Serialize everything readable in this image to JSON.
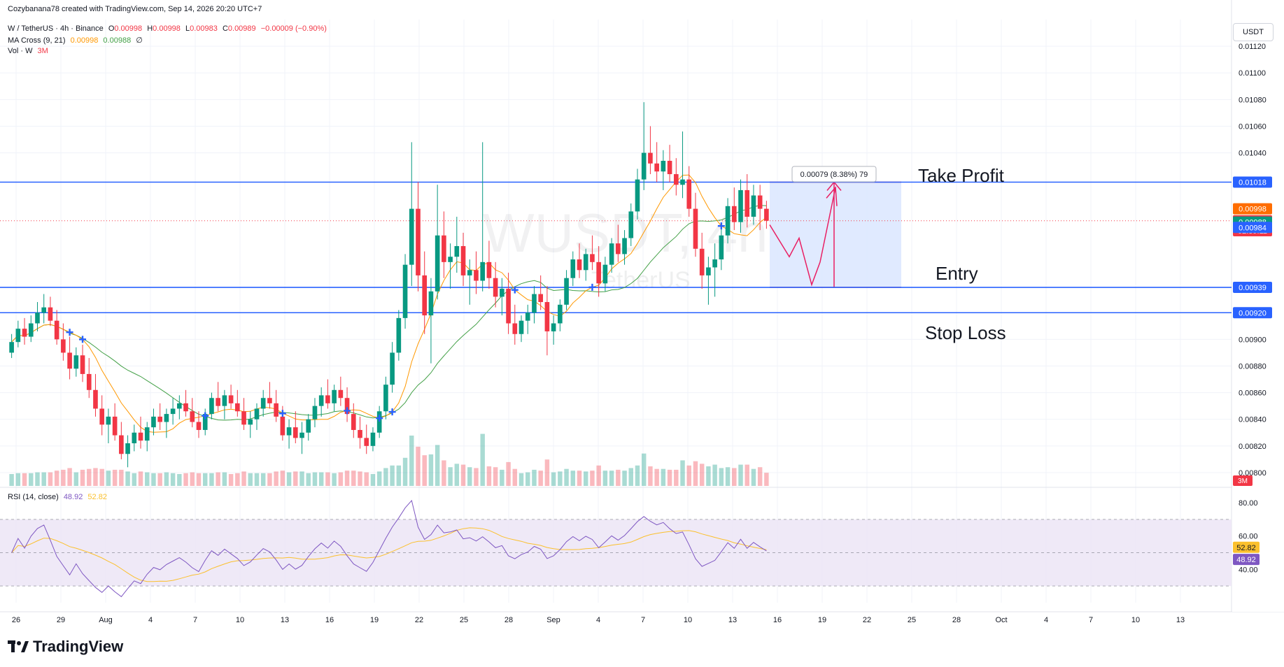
{
  "header": {
    "credit": "Cozybanana78 created with TradingView.com, Sep 14, 2026 20:20 UTC+7",
    "symbol": "W / TetherUS · 4h · Binance",
    "o_label": "O",
    "o_value": "0.00998",
    "h_label": "H",
    "h_value": "0.00998",
    "l_label": "L",
    "l_value": "0.00983",
    "c_label": "C",
    "c_value": "0.00989",
    "change": "−0.00009 (−0.90%)",
    "ma_label": "MA Cross (9, 21)",
    "ma_fast": "0.00998",
    "ma_slow": "0.00988",
    "ma_extra": "∅",
    "vol_label": "Vol · W",
    "vol_value": "3M"
  },
  "currency_button": "USDT",
  "watermark": {
    "symbol": "WUSDT, 4h",
    "name": "TetherUS"
  },
  "annotations": {
    "take_profit": "Take Profit",
    "entry": "Entry",
    "stop_loss": "Stop Loss",
    "measure": "0.00079 (8.38%) 79"
  },
  "price_axis": {
    "ticks": [
      "0.01120",
      "0.01100",
      "0.01080",
      "0.01060",
      "0.01040",
      "0.00900",
      "0.00880",
      "0.00860",
      "0.00840",
      "0.00820",
      "0.00800"
    ],
    "tick_values": [
      0.0112,
      0.011,
      0.0108,
      0.0106,
      0.0104,
      0.009,
      0.0088,
      0.0086,
      0.0084,
      0.0082,
      0.008
    ],
    "badges": [
      {
        "text": "0.01018",
        "value": 0.01018,
        "color": "#2962ff"
      },
      {
        "text": "0.00998",
        "value": 0.00998,
        "color": "#ff6d00"
      },
      {
        "text": "0.00989",
        "value": 0.00989,
        "color": "#f23645"
      },
      {
        "text": "02:39:11",
        "value": 0.009815,
        "color": "#f23645"
      },
      {
        "text": "0.00988",
        "value": 0.00988,
        "color": "#089981"
      },
      {
        "text": "0.00984",
        "value": 0.00984,
        "color": "#2962ff"
      },
      {
        "text": "0.00939",
        "value": 0.00939,
        "color": "#2962ff"
      },
      {
        "text": "0.00920",
        "value": 0.0092,
        "color": "#2962ff"
      }
    ],
    "volume_badge": "3M"
  },
  "rsi": {
    "label": "RSI (14, close)",
    "value": "48.92",
    "ma_value": "52.82",
    "ticks": [
      "80.00",
      "60.00",
      "40.00"
    ],
    "tick_values": [
      80,
      60,
      40
    ],
    "upper": 70,
    "lower": 30,
    "colors": {
      "rsi": "#7e57c2",
      "ma": "#fbc02d",
      "band": "#ede7f6"
    }
  },
  "time_axis": {
    "labels": [
      "26",
      "29",
      "Aug",
      "4",
      "7",
      "10",
      "13",
      "16",
      "19",
      "22",
      "25",
      "28",
      "Sep",
      "4",
      "7",
      "10",
      "13",
      "16",
      "19",
      "22",
      "25",
      "28",
      "Oct",
      "4",
      "7",
      "10",
      "13"
    ]
  },
  "colors": {
    "up": "#089981",
    "down": "#f23645",
    "ma_fast": "#ff9800",
    "ma_slow": "#43a047",
    "level": "#2962ff",
    "cross": "#2962ff",
    "zone": "#dbe6ff",
    "arrow": "#e91e63"
  },
  "chart_data": {
    "type": "candlestick",
    "symbol": "W / TetherUS",
    "interval": "4h",
    "exchange": "Binance",
    "levels": [
      {
        "name": "Take Profit",
        "price": 0.01018
      },
      {
        "name": "Entry",
        "price": 0.00939
      },
      {
        "name": "Stop Loss",
        "price": 0.0092
      }
    ],
    "price_range": [
      0.0079,
      0.0114
    ],
    "last_price": 0.00989,
    "candles": [
      [
        0.0089,
        0.00904,
        0.00886,
        0.00898
      ],
      [
        0.00898,
        0.00914,
        0.00894,
        0.00908
      ],
      [
        0.00908,
        0.00916,
        0.00896,
        0.00902
      ],
      [
        0.00902,
        0.00918,
        0.00898,
        0.00912
      ],
      [
        0.00912,
        0.00928,
        0.00906,
        0.0092
      ],
      [
        0.0092,
        0.00934,
        0.00912,
        0.00924
      ],
      [
        0.00924,
        0.00932,
        0.0091,
        0.00914
      ],
      [
        0.00914,
        0.00922,
        0.00896,
        0.009
      ],
      [
        0.009,
        0.00912,
        0.00884,
        0.0089
      ],
      [
        0.0089,
        0.00902,
        0.0087,
        0.00878
      ],
      [
        0.00878,
        0.00894,
        0.00872,
        0.00888
      ],
      [
        0.00888,
        0.00896,
        0.00868,
        0.00874
      ],
      [
        0.00874,
        0.00886,
        0.00856,
        0.00862
      ],
      [
        0.00862,
        0.00874,
        0.00842,
        0.00848
      ],
      [
        0.00848,
        0.00858,
        0.00828,
        0.00836
      ],
      [
        0.00836,
        0.00848,
        0.00822,
        0.00842
      ],
      [
        0.00842,
        0.00852,
        0.00824,
        0.00828
      ],
      [
        0.00828,
        0.00838,
        0.0081,
        0.00814
      ],
      [
        0.00814,
        0.00828,
        0.00804,
        0.00822
      ],
      [
        0.00822,
        0.00836,
        0.00816,
        0.0083
      ],
      [
        0.0083,
        0.00842,
        0.00818,
        0.00824
      ],
      [
        0.00824,
        0.00838,
        0.00816,
        0.00834
      ],
      [
        0.00834,
        0.00848,
        0.00828,
        0.00842
      ],
      [
        0.00842,
        0.00852,
        0.00832,
        0.00838
      ],
      [
        0.00838,
        0.00848,
        0.00826,
        0.00844
      ],
      [
        0.00844,
        0.00856,
        0.00836,
        0.00848
      ],
      [
        0.00848,
        0.00858,
        0.0084,
        0.00852
      ],
      [
        0.00852,
        0.00862,
        0.00842,
        0.00846
      ],
      [
        0.00846,
        0.00856,
        0.00834,
        0.00838
      ],
      [
        0.00838,
        0.00846,
        0.00826,
        0.00832
      ],
      [
        0.00832,
        0.00848,
        0.00828,
        0.00844
      ],
      [
        0.00844,
        0.0086,
        0.0084,
        0.00856
      ],
      [
        0.00856,
        0.00868,
        0.00846,
        0.0085
      ],
      [
        0.0085,
        0.00862,
        0.0084,
        0.00858
      ],
      [
        0.00858,
        0.00866,
        0.00848,
        0.00852
      ],
      [
        0.00852,
        0.00862,
        0.00842,
        0.00846
      ],
      [
        0.00846,
        0.00856,
        0.00832,
        0.00836
      ],
      [
        0.00836,
        0.00846,
        0.00826,
        0.0084
      ],
      [
        0.0084,
        0.00852,
        0.00832,
        0.00848
      ],
      [
        0.00848,
        0.00862,
        0.00842,
        0.00856
      ],
      [
        0.00856,
        0.00868,
        0.00848,
        0.00852
      ],
      [
        0.00852,
        0.00862,
        0.00838,
        0.00842
      ],
      [
        0.00842,
        0.0085,
        0.00824,
        0.00828
      ],
      [
        0.00828,
        0.0084,
        0.00818,
        0.00834
      ],
      [
        0.00834,
        0.00846,
        0.00822,
        0.00826
      ],
      [
        0.00826,
        0.00838,
        0.00814,
        0.0083
      ],
      [
        0.0083,
        0.00844,
        0.00824,
        0.0084
      ],
      [
        0.0084,
        0.00856,
        0.00834,
        0.0085
      ],
      [
        0.0085,
        0.00864,
        0.00842,
        0.00858
      ],
      [
        0.00858,
        0.0087,
        0.00848,
        0.00852
      ],
      [
        0.00852,
        0.00866,
        0.00846,
        0.00862
      ],
      [
        0.00862,
        0.00872,
        0.0085,
        0.00856
      ],
      [
        0.00856,
        0.00864,
        0.00838,
        0.00844
      ],
      [
        0.00844,
        0.00852,
        0.00826,
        0.00832
      ],
      [
        0.00832,
        0.00842,
        0.00818,
        0.00826
      ],
      [
        0.00826,
        0.00836,
        0.00814,
        0.0082
      ],
      [
        0.0082,
        0.00834,
        0.00816,
        0.0083
      ],
      [
        0.0083,
        0.0085,
        0.00826,
        0.00846
      ],
      [
        0.00846,
        0.00872,
        0.0084,
        0.00866
      ],
      [
        0.00866,
        0.00898,
        0.0086,
        0.0089
      ],
      [
        0.0089,
        0.00922,
        0.00884,
        0.00916
      ],
      [
        0.00916,
        0.00964,
        0.00908,
        0.00956
      ],
      [
        0.00956,
        0.01048,
        0.0094,
        0.00998
      ],
      [
        0.00998,
        0.01018,
        0.00936,
        0.00948
      ],
      [
        0.00948,
        0.00966,
        0.00904,
        0.00918
      ],
      [
        0.00918,
        0.00946,
        0.00882,
        0.00936
      ],
      [
        0.00936,
        0.01016,
        0.0093,
        0.00978
      ],
      [
        0.00978,
        0.00996,
        0.00946,
        0.00958
      ],
      [
        0.00958,
        0.00972,
        0.00938,
        0.00962
      ],
      [
        0.00962,
        0.00992,
        0.0095,
        0.0097
      ],
      [
        0.0097,
        0.0098,
        0.0094,
        0.00948
      ],
      [
        0.00948,
        0.0096,
        0.00926,
        0.00952
      ],
      [
        0.00952,
        0.00966,
        0.00934,
        0.00944
      ],
      [
        0.00944,
        0.01048,
        0.00936,
        0.00958
      ],
      [
        0.00958,
        0.00974,
        0.00938,
        0.00946
      ],
      [
        0.00946,
        0.00958,
        0.00924,
        0.00932
      ],
      [
        0.00932,
        0.00946,
        0.00918,
        0.00938
      ],
      [
        0.00938,
        0.0095,
        0.00904,
        0.00912
      ],
      [
        0.00912,
        0.00926,
        0.00896,
        0.00904
      ],
      [
        0.00904,
        0.00918,
        0.00898,
        0.00914
      ],
      [
        0.00914,
        0.00926,
        0.00904,
        0.0092
      ],
      [
        0.0092,
        0.0094,
        0.00912,
        0.00934
      ],
      [
        0.00934,
        0.00948,
        0.00922,
        0.00928
      ],
      [
        0.00928,
        0.0094,
        0.00888,
        0.00906
      ],
      [
        0.00906,
        0.00918,
        0.00896,
        0.00912
      ],
      [
        0.00912,
        0.0093,
        0.00906,
        0.00926
      ],
      [
        0.00926,
        0.00952,
        0.00922,
        0.00946
      ],
      [
        0.00946,
        0.00966,
        0.0094,
        0.0096
      ],
      [
        0.0096,
        0.00972,
        0.00946,
        0.00952
      ],
      [
        0.00952,
        0.00968,
        0.00944,
        0.00964
      ],
      [
        0.00964,
        0.00978,
        0.00952,
        0.00958
      ],
      [
        0.00958,
        0.0097,
        0.00932,
        0.00942
      ],
      [
        0.00942,
        0.00962,
        0.00936,
        0.00956
      ],
      [
        0.00956,
        0.00976,
        0.0095,
        0.00972
      ],
      [
        0.00972,
        0.00986,
        0.00958,
        0.00964
      ],
      [
        0.00964,
        0.00982,
        0.00956,
        0.00976
      ],
      [
        0.00976,
        0.01002,
        0.0097,
        0.00996
      ],
      [
        0.00996,
        0.01028,
        0.0099,
        0.0102
      ],
      [
        0.0102,
        0.01078,
        0.01012,
        0.0104
      ],
      [
        0.0104,
        0.0106,
        0.01024,
        0.01032
      ],
      [
        0.01032,
        0.01048,
        0.01018,
        0.01026
      ],
      [
        0.01026,
        0.01042,
        0.01012,
        0.01034
      ],
      [
        0.01034,
        0.01046,
        0.01018,
        0.01024
      ],
      [
        0.01024,
        0.01036,
        0.01008,
        0.01016
      ],
      [
        0.01016,
        0.01056,
        0.01006,
        0.0102
      ],
      [
        0.0102,
        0.0103,
        0.00992,
        0.00998
      ],
      [
        0.00998,
        0.0101,
        0.00962,
        0.00968
      ],
      [
        0.00968,
        0.0098,
        0.00938,
        0.00948
      ],
      [
        0.00948,
        0.00962,
        0.00926,
        0.00954
      ],
      [
        0.00954,
        0.00972,
        0.00932,
        0.0096
      ],
      [
        0.0096,
        0.00984,
        0.00952,
        0.00978
      ],
      [
        0.00978,
        0.01006,
        0.00972,
        0.01
      ],
      [
        0.01,
        0.01014,
        0.00982,
        0.00988
      ],
      [
        0.00988,
        0.0102,
        0.0098,
        0.01012
      ],
      [
        0.01012,
        0.01024,
        0.00984,
        0.00992
      ],
      [
        0.00992,
        0.01016,
        0.00986,
        0.01008
      ],
      [
        0.01008,
        0.01016,
        0.00982,
        0.00998
      ],
      [
        0.00998,
        0.01004,
        0.00983,
        0.00989
      ]
    ]
  }
}
